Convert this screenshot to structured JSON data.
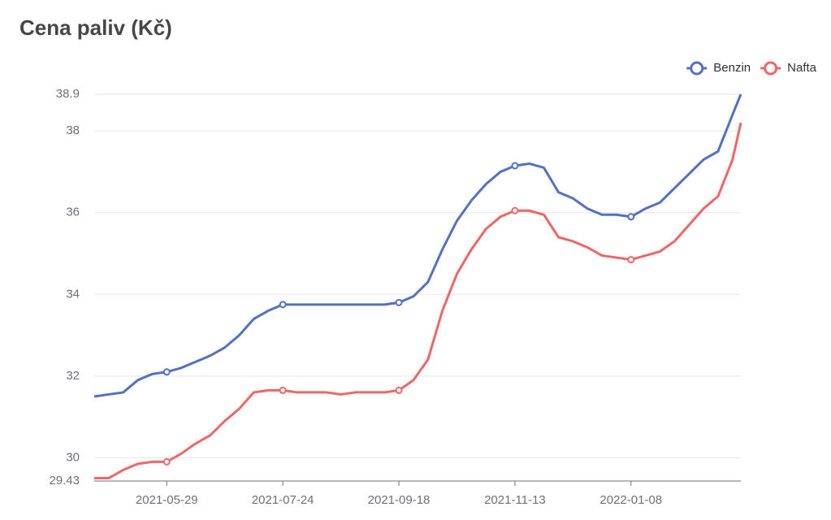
{
  "chart_data": {
    "type": "line",
    "title": "Cena paliv (Kč)",
    "x": [
      "2021-04-24",
      "2021-05-01",
      "2021-05-08",
      "2021-05-15",
      "2021-05-22",
      "2021-05-29",
      "2021-06-05",
      "2021-06-12",
      "2021-06-19",
      "2021-06-26",
      "2021-07-03",
      "2021-07-10",
      "2021-07-17",
      "2021-07-24",
      "2021-07-31",
      "2021-08-07",
      "2021-08-14",
      "2021-08-21",
      "2021-08-28",
      "2021-09-04",
      "2021-09-11",
      "2021-09-18",
      "2021-09-25",
      "2021-10-02",
      "2021-10-09",
      "2021-10-16",
      "2021-10-23",
      "2021-10-30",
      "2021-11-06",
      "2021-11-13",
      "2021-11-20",
      "2021-11-27",
      "2021-12-04",
      "2021-12-11",
      "2021-12-18",
      "2021-12-25",
      "2022-01-01",
      "2022-01-08",
      "2022-01-15",
      "2022-01-22",
      "2022-01-29",
      "2022-02-05",
      "2022-02-12",
      "2022-02-19",
      "2022-02-26",
      "2022-03-02"
    ],
    "series": [
      {
        "name": "Benzin",
        "color": "#5470c6",
        "values": [
          31.5,
          31.55,
          31.6,
          31.9,
          32.05,
          32.1,
          32.2,
          32.35,
          32.5,
          32.7,
          33.0,
          33.4,
          33.6,
          33.75,
          33.75,
          33.75,
          33.75,
          33.75,
          33.75,
          33.75,
          33.75,
          33.8,
          33.95,
          34.3,
          35.1,
          35.8,
          36.3,
          36.7,
          37.0,
          37.15,
          37.2,
          37.1,
          36.5,
          36.35,
          36.1,
          35.95,
          35.95,
          35.9,
          36.1,
          36.25,
          36.6,
          36.95,
          37.3,
          37.5,
          38.4,
          38.9
        ]
      },
      {
        "name": "Nafta",
        "color": "#ee6666",
        "values": [
          29.5,
          29.5,
          29.7,
          29.85,
          29.9,
          29.9,
          30.1,
          30.35,
          30.55,
          30.9,
          31.2,
          31.6,
          31.65,
          31.65,
          31.6,
          31.6,
          31.6,
          31.55,
          31.6,
          31.6,
          31.6,
          31.65,
          31.9,
          32.4,
          33.6,
          34.5,
          35.1,
          35.6,
          35.9,
          36.05,
          36.05,
          35.95,
          35.4,
          35.3,
          35.15,
          34.95,
          34.9,
          34.85,
          34.95,
          35.05,
          35.3,
          35.7,
          36.1,
          36.4,
          37.3,
          38.2
        ]
      }
    ],
    "xlim": [
      "2021-04-24",
      "2022-03-02"
    ],
    "xticks": [
      "2021-05-29",
      "2021-07-24",
      "2021-09-18",
      "2021-11-13",
      "2022-01-08"
    ],
    "ylim": [
      29.43,
      38.9
    ],
    "yticks": [
      29.43,
      30,
      32,
      34,
      36,
      38,
      38.9
    ],
    "grid": true,
    "legend": "top-right"
  }
}
